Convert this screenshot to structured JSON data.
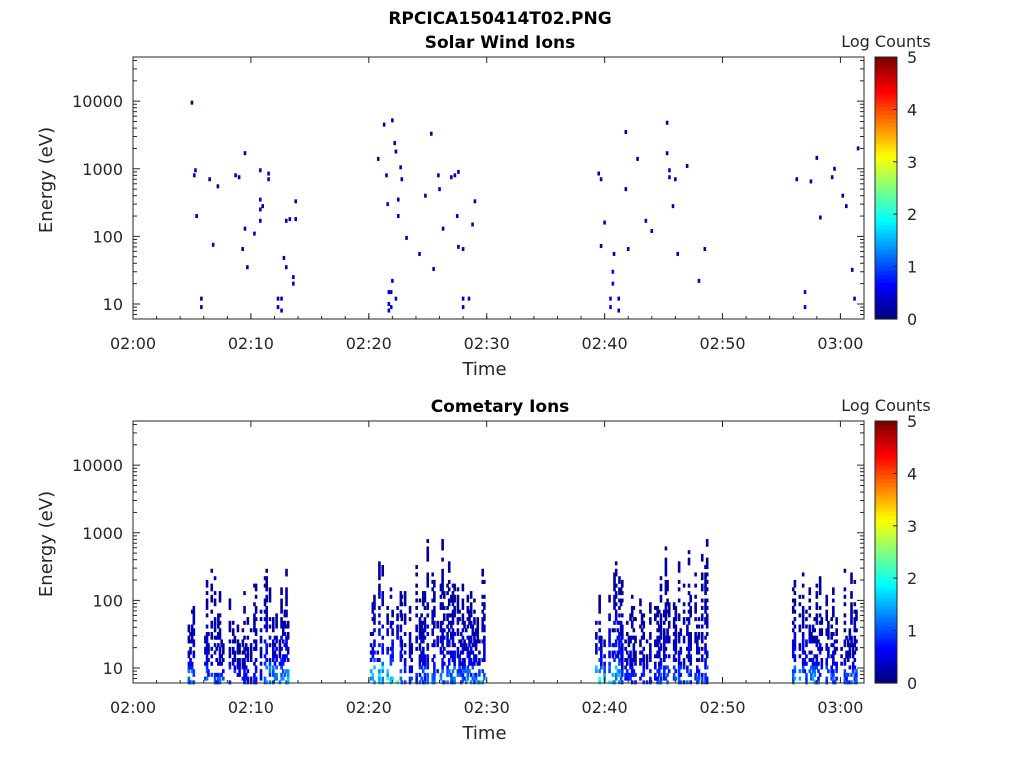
{
  "figure": {
    "title": "RPCICA150414T02.PNG"
  },
  "chart_data": [
    {
      "type": "heatmap",
      "title": "Solar Wind Ions",
      "xlabel": "Time",
      "ylabel": "Energy (eV)",
      "x_ticks": [
        "02:00",
        "02:10",
        "02:20",
        "02:30",
        "02:40",
        "02:50",
        "03:00"
      ],
      "y_ticks": [
        "10",
        "100",
        "1000",
        "10000"
      ],
      "y_scale": "log",
      "ylim": [
        6,
        45000
      ],
      "xlim_minutes": [
        0,
        62
      ],
      "colorbar": {
        "label": "Log Counts",
        "range": [
          0,
          5
        ],
        "ticks": [
          "0",
          "1",
          "2",
          "3",
          "4",
          "5"
        ],
        "colormap": "jet"
      },
      "cells": [
        {
          "t": 5.0,
          "e": 9500,
          "v": 0.1
        },
        {
          "t": 5.2,
          "e": 800,
          "v": 0.3
        },
        {
          "t": 5.3,
          "e": 950,
          "v": 0.3
        },
        {
          "t": 5.4,
          "e": 200,
          "v": 0.2
        },
        {
          "t": 5.8,
          "e": 12,
          "v": 0.3
        },
        {
          "t": 5.8,
          "e": 9,
          "v": 0.3
        },
        {
          "t": 6.5,
          "e": 700,
          "v": 0.2
        },
        {
          "t": 6.8,
          "e": 75,
          "v": 0.3
        },
        {
          "t": 7.2,
          "e": 550,
          "v": 0.2
        },
        {
          "t": 8.7,
          "e": 800,
          "v": 0.3
        },
        {
          "t": 9.0,
          "e": 750,
          "v": 0.2
        },
        {
          "t": 9.3,
          "e": 65,
          "v": 0.1
        },
        {
          "t": 9.5,
          "e": 1700,
          "v": 0.2
        },
        {
          "t": 9.5,
          "e": 130,
          "v": 0.2
        },
        {
          "t": 9.7,
          "e": 35,
          "v": 0.3
        },
        {
          "t": 10.3,
          "e": 110,
          "v": 0.3
        },
        {
          "t": 10.8,
          "e": 950,
          "v": 0.3
        },
        {
          "t": 10.8,
          "e": 350,
          "v": 0.5
        },
        {
          "t": 10.8,
          "e": 250,
          "v": 0.5
        },
        {
          "t": 10.8,
          "e": 170,
          "v": 0.4
        },
        {
          "t": 11.0,
          "e": 280,
          "v": 0.2
        },
        {
          "t": 11.5,
          "e": 850,
          "v": 0.2
        },
        {
          "t": 11.5,
          "e": 700,
          "v": 0.3
        },
        {
          "t": 12.3,
          "e": 12,
          "v": 0.4
        },
        {
          "t": 12.3,
          "e": 9,
          "v": 0.4
        },
        {
          "t": 12.6,
          "e": 12,
          "v": 0.4
        },
        {
          "t": 12.6,
          "e": 8,
          "v": 0.4
        },
        {
          "t": 12.8,
          "e": 48,
          "v": 0.3
        },
        {
          "t": 13.0,
          "e": 35,
          "v": 0.2
        },
        {
          "t": 13.0,
          "e": 170,
          "v": 0.2
        },
        {
          "t": 13.3,
          "e": 180,
          "v": 0.3
        },
        {
          "t": 13.6,
          "e": 25,
          "v": 0.3
        },
        {
          "t": 13.6,
          "e": 20,
          "v": 0.3
        },
        {
          "t": 13.8,
          "e": 330,
          "v": 0.2
        },
        {
          "t": 13.8,
          "e": 180,
          "v": 0.3
        },
        {
          "t": 20.8,
          "e": 1400,
          "v": 0.2
        },
        {
          "t": 21.3,
          "e": 4500,
          "v": 0.2
        },
        {
          "t": 21.5,
          "e": 800,
          "v": 0.3
        },
        {
          "t": 21.6,
          "e": 300,
          "v": 0.5
        },
        {
          "t": 21.7,
          "e": 15,
          "v": 0.6
        },
        {
          "t": 21.7,
          "e": 10,
          "v": 0.6
        },
        {
          "t": 21.7,
          "e": 8,
          "v": 0.6
        },
        {
          "t": 21.9,
          "e": 15,
          "v": 0.6
        },
        {
          "t": 21.9,
          "e": 9,
          "v": 0.6
        },
        {
          "t": 22.0,
          "e": 22,
          "v": 0.5
        },
        {
          "t": 22.0,
          "e": 5200,
          "v": 0.2
        },
        {
          "t": 22.2,
          "e": 2400,
          "v": 0.2
        },
        {
          "t": 22.3,
          "e": 1800,
          "v": 0.2
        },
        {
          "t": 22.3,
          "e": 12,
          "v": 0.5
        },
        {
          "t": 22.5,
          "e": 350,
          "v": 0.3
        },
        {
          "t": 22.5,
          "e": 200,
          "v": 0.3
        },
        {
          "t": 22.7,
          "e": 1050,
          "v": 0.2
        },
        {
          "t": 22.8,
          "e": 700,
          "v": 0.3
        },
        {
          "t": 23.2,
          "e": 95,
          "v": 0.3
        },
        {
          "t": 24.3,
          "e": 55,
          "v": 0.3
        },
        {
          "t": 24.8,
          "e": 400,
          "v": 0.2
        },
        {
          "t": 25.3,
          "e": 3300,
          "v": 0.2
        },
        {
          "t": 25.5,
          "e": 33,
          "v": 0.3
        },
        {
          "t": 25.9,
          "e": 800,
          "v": 0.3
        },
        {
          "t": 26.0,
          "e": 500,
          "v": 0.3
        },
        {
          "t": 26.3,
          "e": 130,
          "v": 0.2
        },
        {
          "t": 27.0,
          "e": 750,
          "v": 0.3
        },
        {
          "t": 27.3,
          "e": 800,
          "v": 0.3
        },
        {
          "t": 27.5,
          "e": 200,
          "v": 0.3
        },
        {
          "t": 27.6,
          "e": 900,
          "v": 0.3
        },
        {
          "t": 27.6,
          "e": 70,
          "v": 0.2
        },
        {
          "t": 28.0,
          "e": 65,
          "v": 0.2
        },
        {
          "t": 28.0,
          "e": 12,
          "v": 0.5
        },
        {
          "t": 28.0,
          "e": 9,
          "v": 0.5
        },
        {
          "t": 28.5,
          "e": 12,
          "v": 0.5
        },
        {
          "t": 28.8,
          "e": 150,
          "v": 0.2
        },
        {
          "t": 29.0,
          "e": 330,
          "v": 0.2
        },
        {
          "t": 39.5,
          "e": 850,
          "v": 0.3
        },
        {
          "t": 39.7,
          "e": 700,
          "v": 0.3
        },
        {
          "t": 39.7,
          "e": 72,
          "v": 0.2
        },
        {
          "t": 40.0,
          "e": 160,
          "v": 0.2
        },
        {
          "t": 40.5,
          "e": 12,
          "v": 0.6
        },
        {
          "t": 40.5,
          "e": 9,
          "v": 0.6
        },
        {
          "t": 40.7,
          "e": 30,
          "v": 0.5
        },
        {
          "t": 40.7,
          "e": 20,
          "v": 0.5
        },
        {
          "t": 40.8,
          "e": 55,
          "v": 0.3
        },
        {
          "t": 41.2,
          "e": 12,
          "v": 0.3
        },
        {
          "t": 41.2,
          "e": 8,
          "v": 0.3
        },
        {
          "t": 41.8,
          "e": 3500,
          "v": 0.2
        },
        {
          "t": 41.8,
          "e": 500,
          "v": 0.2
        },
        {
          "t": 42.0,
          "e": 65,
          "v": 0.2
        },
        {
          "t": 42.8,
          "e": 1400,
          "v": 0.2
        },
        {
          "t": 43.5,
          "e": 170,
          "v": 0.3
        },
        {
          "t": 44.0,
          "e": 120,
          "v": 0.3
        },
        {
          "t": 45.3,
          "e": 4800,
          "v": 0.2
        },
        {
          "t": 45.3,
          "e": 1700,
          "v": 0.2
        },
        {
          "t": 45.5,
          "e": 950,
          "v": 0.3
        },
        {
          "t": 45.5,
          "e": 750,
          "v": 0.3
        },
        {
          "t": 45.8,
          "e": 280,
          "v": 0.2
        },
        {
          "t": 46.0,
          "e": 700,
          "v": 0.3
        },
        {
          "t": 46.2,
          "e": 55,
          "v": 0.3
        },
        {
          "t": 47.0,
          "e": 1100,
          "v": 0.2
        },
        {
          "t": 48.0,
          "e": 22,
          "v": 0.3
        },
        {
          "t": 48.5,
          "e": 65,
          "v": 0.1
        },
        {
          "t": 56.3,
          "e": 700,
          "v": 0.2
        },
        {
          "t": 57.0,
          "e": 15,
          "v": 0.6
        },
        {
          "t": 57.0,
          "e": 9,
          "v": 0.6
        },
        {
          "t": 57.5,
          "e": 650,
          "v": 0.2
        },
        {
          "t": 58.0,
          "e": 1450,
          "v": 0.2
        },
        {
          "t": 58.3,
          "e": 190,
          "v": 0.2
        },
        {
          "t": 59.3,
          "e": 750,
          "v": 0.3
        },
        {
          "t": 59.5,
          "e": 1000,
          "v": 0.2
        },
        {
          "t": 60.2,
          "e": 400,
          "v": 0.2
        },
        {
          "t": 60.5,
          "e": 280,
          "v": 0.2
        },
        {
          "t": 61.0,
          "e": 32,
          "v": 0.2
        },
        {
          "t": 61.2,
          "e": 12,
          "v": 0.4
        },
        {
          "t": 61.5,
          "e": 2000,
          "v": 0.2
        }
      ]
    },
    {
      "type": "heatmap",
      "title": "Cometary Ions",
      "xlabel": "Time",
      "ylabel": "Energy (eV)",
      "x_ticks": [
        "02:00",
        "02:10",
        "02:20",
        "02:30",
        "02:40",
        "02:50",
        "03:00"
      ],
      "y_ticks": [
        "10",
        "100",
        "1000",
        "10000"
      ],
      "y_scale": "log",
      "ylim": [
        6,
        45000
      ],
      "xlim_minutes": [
        0,
        62
      ],
      "colorbar": {
        "label": "Log Counts",
        "range": [
          0,
          5
        ],
        "ticks": [
          "0",
          "1",
          "2",
          "3",
          "4",
          "5"
        ],
        "colormap": "jet"
      },
      "bursts": [
        {
          "t0": 4.6,
          "t1": 6.4,
          "emax": 200,
          "vmax": 1.6,
          "seed": 3
        },
        {
          "t0": 6.4,
          "t1": 8.9,
          "emax": 320,
          "vmax": 1.2,
          "seed": 7
        },
        {
          "t0": 8.9,
          "t1": 11.2,
          "emax": 300,
          "vmax": 0.9,
          "seed": 11
        },
        {
          "t0": 11.2,
          "t1": 13.4,
          "emax": 350,
          "vmax": 1.8,
          "seed": 13
        },
        {
          "t0": 20.2,
          "t1": 22.8,
          "emax": 450,
          "vmax": 2.3,
          "seed": 17
        },
        {
          "t0": 22.8,
          "t1": 25.0,
          "emax": 400,
          "vmax": 1.2,
          "seed": 19
        },
        {
          "t0": 25.0,
          "t1": 27.0,
          "emax": 1300,
          "vmax": 1.5,
          "seed": 23
        },
        {
          "t0": 27.0,
          "t1": 30.0,
          "emax": 400,
          "vmax": 1.5,
          "seed": 29
        },
        {
          "t0": 39.3,
          "t1": 41.5,
          "emax": 400,
          "vmax": 2.2,
          "seed": 31
        },
        {
          "t0": 41.5,
          "t1": 44.5,
          "emax": 200,
          "vmax": 1.0,
          "seed": 37
        },
        {
          "t0": 44.5,
          "t1": 48.8,
          "emax": 1200,
          "vmax": 1.2,
          "seed": 41
        },
        {
          "t0": 56.0,
          "t1": 58.0,
          "emax": 280,
          "vmax": 1.6,
          "seed": 43
        },
        {
          "t0": 58.0,
          "t1": 61.5,
          "emax": 280,
          "vmax": 1.3,
          "seed": 47
        }
      ]
    }
  ]
}
